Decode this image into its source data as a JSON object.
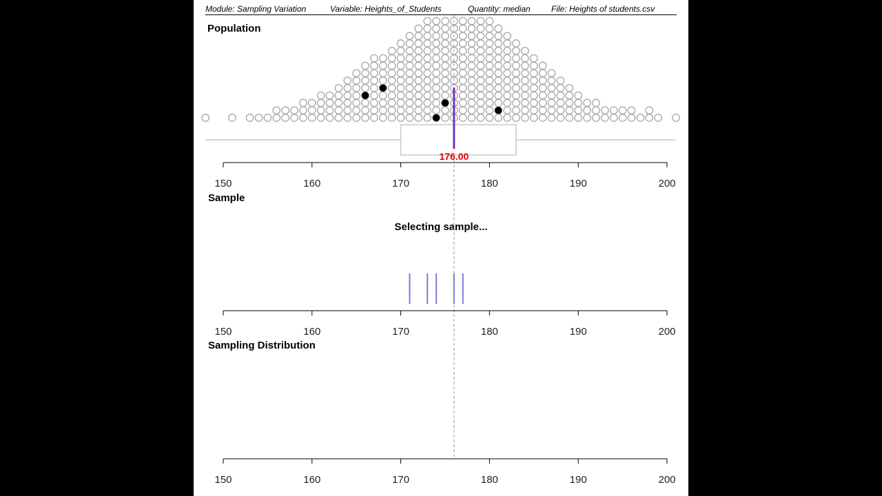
{
  "header": {
    "module": "Module: Sampling Variation",
    "variable": "Variable: Heights_of_Students",
    "quantity": "Quantity: median",
    "file": "File: Heights of students.csv"
  },
  "population": {
    "title": "Population",
    "median_label": "176.00",
    "median": 176,
    "box": {
      "q1": 170,
      "q3": 183
    },
    "whisker": [
      148,
      201
    ],
    "dot_columns": [
      {
        "x": 148,
        "n": 1
      },
      {
        "x": 151,
        "n": 1
      },
      {
        "x": 153,
        "n": 1
      },
      {
        "x": 154,
        "n": 1
      },
      {
        "x": 155,
        "n": 1
      },
      {
        "x": 156,
        "n": 2
      },
      {
        "x": 157,
        "n": 2
      },
      {
        "x": 158,
        "n": 2
      },
      {
        "x": 159,
        "n": 3
      },
      {
        "x": 160,
        "n": 3
      },
      {
        "x": 161,
        "n": 4
      },
      {
        "x": 162,
        "n": 4
      },
      {
        "x": 163,
        "n": 5
      },
      {
        "x": 164,
        "n": 6
      },
      {
        "x": 165,
        "n": 7
      },
      {
        "x": 166,
        "n": 8
      },
      {
        "x": 167,
        "n": 9
      },
      {
        "x": 168,
        "n": 9
      },
      {
        "x": 169,
        "n": 10
      },
      {
        "x": 170,
        "n": 11
      },
      {
        "x": 171,
        "n": 12
      },
      {
        "x": 172,
        "n": 13
      },
      {
        "x": 173,
        "n": 14
      },
      {
        "x": 174,
        "n": 14
      },
      {
        "x": 175,
        "n": 14
      },
      {
        "x": 176,
        "n": 14
      },
      {
        "x": 177,
        "n": 14
      },
      {
        "x": 178,
        "n": 14
      },
      {
        "x": 179,
        "n": 14
      },
      {
        "x": 180,
        "n": 14
      },
      {
        "x": 181,
        "n": 13
      },
      {
        "x": 182,
        "n": 12
      },
      {
        "x": 183,
        "n": 11
      },
      {
        "x": 184,
        "n": 10
      },
      {
        "x": 185,
        "n": 9
      },
      {
        "x": 186,
        "n": 8
      },
      {
        "x": 187,
        "n": 7
      },
      {
        "x": 188,
        "n": 6
      },
      {
        "x": 189,
        "n": 5
      },
      {
        "x": 190,
        "n": 4
      },
      {
        "x": 191,
        "n": 3
      },
      {
        "x": 192,
        "n": 3
      },
      {
        "x": 193,
        "n": 2
      },
      {
        "x": 194,
        "n": 2
      },
      {
        "x": 195,
        "n": 2
      },
      {
        "x": 196,
        "n": 2
      },
      {
        "x": 197,
        "n": 1
      },
      {
        "x": 198,
        "n": 2
      },
      {
        "x": 199,
        "n": 1
      },
      {
        "x": 201,
        "n": 1
      }
    ],
    "selected": [
      {
        "x": 166,
        "level": 3
      },
      {
        "x": 168,
        "level": 4
      },
      {
        "x": 174,
        "level": 0
      },
      {
        "x": 175,
        "level": 2
      },
      {
        "x": 181,
        "level": 1
      }
    ]
  },
  "sample": {
    "title": "Sample",
    "status": "Selecting sample...",
    "values": [
      171,
      173,
      174,
      176,
      177
    ]
  },
  "sampling_distribution": {
    "title": "Sampling Distribution"
  },
  "axis": {
    "ticks": [
      "150",
      "160",
      "170",
      "180",
      "190",
      "200"
    ],
    "range": [
      150,
      200
    ]
  },
  "colors": {
    "median_line": "#7a2fbf",
    "median_label": "#e00000",
    "sample_lines": "#7b7bd6",
    "dots": "#a6a6a6",
    "box": "#c8c8c8"
  }
}
